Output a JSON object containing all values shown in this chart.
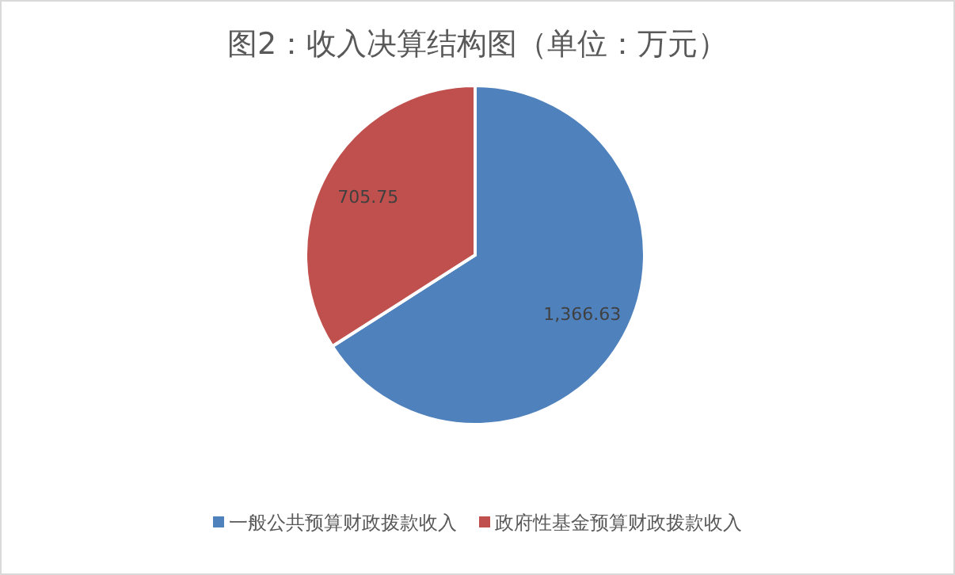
{
  "chart_data": {
    "type": "pie",
    "title": "图2：收入决算结构图（单位：万元）",
    "categories": [
      "一般公共预算财政拨款收入",
      "政府性基金预算财政拨款收入"
    ],
    "values": [
      1366.63,
      705.75
    ],
    "colors": [
      "#4f81bd",
      "#c0504d"
    ],
    "value_labels": [
      "1,366.63",
      "705.75"
    ],
    "legend": "bottom"
  }
}
